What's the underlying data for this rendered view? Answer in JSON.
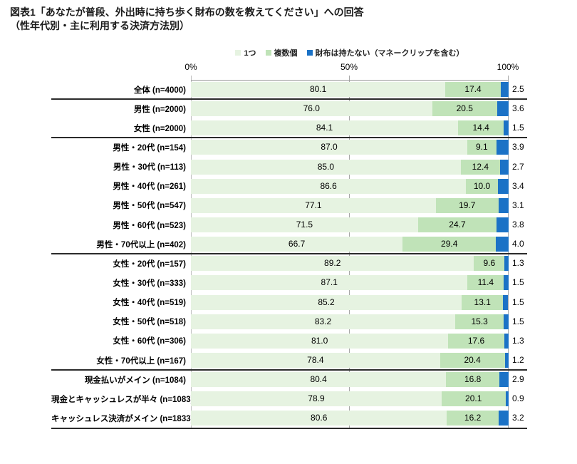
{
  "title": {
    "line1": "図表1「あなたが普段、外出時に持ち歩く財布の数を教えてください」への回答",
    "line2": "（性年代別・主に利用する決済方法別）"
  },
  "legend": {
    "items": [
      {
        "name": "one-wallet",
        "label": "1つ",
        "color": "#e6f3e1"
      },
      {
        "name": "multiple-wallets",
        "label": "複数個",
        "color": "#c0e3b8"
      },
      {
        "name": "no-wallet",
        "label": "財布は持たない（マネークリップを含む）",
        "color": "#1b72c6"
      }
    ]
  },
  "axis": {
    "tick0": "0%",
    "tick50": "50%",
    "tick100": "100%"
  },
  "chart_data": {
    "type": "bar",
    "orientation": "horizontal",
    "stacked": true,
    "unit": "%",
    "xlim": [
      0,
      100
    ],
    "x_ticks": [
      "0%",
      "50%",
      "100%"
    ],
    "legend_position": "top-center",
    "value_decimals": 1,
    "categories": [
      "全体 (n=4000)",
      "男性 (n=2000)",
      "女性 (n=2000)",
      "男性・20代 (n=154)",
      "男性・30代 (n=113)",
      "男性・40代 (n=261)",
      "男性・50代 (n=547)",
      "男性・60代 (n=523)",
      "男性・70代以上 (n=402)",
      "女性・20代 (n=157)",
      "女性・30代 (n=333)",
      "女性・40代 (n=519)",
      "女性・50代 (n=518)",
      "女性・60代 (n=306)",
      "女性・70代以上 (n=167)",
      "現金払いがメイン (n=1084)",
      "現金とキャッシュレスが半々 (n=1083)",
      "キャッシュレス決済がメイン (n=1833)"
    ],
    "series": [
      {
        "name": "1つ",
        "color": "#e6f3e1",
        "values": [
          80.1,
          76.0,
          84.1,
          87.0,
          85.0,
          86.6,
          77.1,
          71.5,
          66.7,
          89.2,
          87.1,
          85.2,
          83.2,
          81.0,
          78.4,
          80.4,
          78.9,
          80.6
        ]
      },
      {
        "name": "複数個",
        "color": "#c0e3b8",
        "values": [
          17.4,
          20.5,
          14.4,
          9.1,
          12.4,
          10.0,
          19.7,
          24.7,
          29.4,
          9.6,
          11.4,
          13.1,
          15.3,
          17.6,
          20.4,
          16.8,
          20.1,
          16.2
        ]
      },
      {
        "name": "財布は持たない（マネークリップを含む）",
        "color": "#1b72c6",
        "values": [
          2.5,
          3.6,
          1.5,
          3.9,
          2.7,
          3.4,
          3.1,
          3.8,
          4.0,
          1.3,
          1.5,
          1.5,
          1.5,
          1.3,
          1.2,
          2.9,
          0.9,
          3.2
        ]
      }
    ],
    "group_separators_after_rows": [
      1,
      3,
      9,
      15,
      18
    ]
  }
}
